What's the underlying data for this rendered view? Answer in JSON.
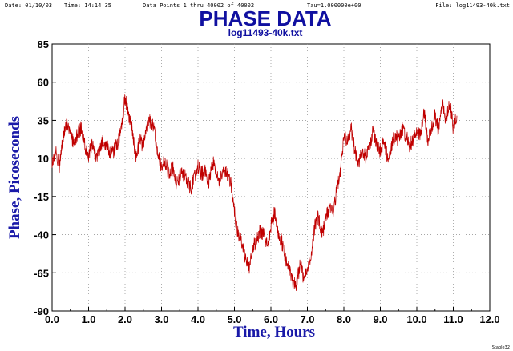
{
  "header": {
    "date": "Date: 01/10/03",
    "time": "Time: 14:14:35",
    "points": "Data Points 1 thru 40002 of 40002",
    "tau": "Tau=1.000000e+00",
    "file": "File: log11493-40k.txt"
  },
  "footer": {
    "program": "Stable32"
  },
  "colors": {
    "trace": "#c00000",
    "title": "#1010a0",
    "grid": "#9a9a9a"
  },
  "chart_data": {
    "type": "line",
    "title": "PHASE DATA",
    "subtitle": "log11493-40k.txt",
    "xlabel": "Time, Hours",
    "ylabel": "Phase, Picoseconds",
    "xlim": [
      0,
      12
    ],
    "ylim": [
      -90,
      85
    ],
    "xticks": [
      "0.0",
      "1.0",
      "2.0",
      "3.0",
      "4.0",
      "5.0",
      "6.0",
      "7.0",
      "8.0",
      "9.0",
      "10.0",
      "11.0",
      "12.0"
    ],
    "yticks": [
      "85",
      "60",
      "35",
      "10",
      "-15",
      "-40",
      "-65",
      "-90"
    ],
    "grid": true,
    "series": [
      {
        "x": [
          0.0,
          0.1,
          0.2,
          0.3,
          0.4,
          0.5,
          0.6,
          0.7,
          0.8,
          0.9,
          1.0,
          1.1,
          1.2,
          1.3,
          1.4,
          1.5,
          1.6,
          1.7,
          1.8,
          1.9,
          2.0,
          2.1,
          2.2,
          2.3,
          2.4,
          2.5,
          2.6,
          2.7,
          2.8,
          2.9,
          3.0,
          3.1,
          3.2,
          3.3,
          3.4,
          3.5,
          3.6,
          3.7,
          3.8,
          3.9,
          4.0,
          4.1,
          4.2,
          4.3,
          4.4,
          4.5,
          4.6,
          4.7,
          4.8,
          4.9,
          5.0,
          5.1,
          5.2,
          5.3,
          5.4,
          5.5,
          5.6,
          5.7,
          5.8,
          5.9,
          6.0,
          6.1,
          6.2,
          6.3,
          6.4,
          6.5,
          6.6,
          6.7,
          6.8,
          6.9,
          7.0,
          7.1,
          7.2,
          7.3,
          7.4,
          7.5,
          7.6,
          7.7,
          7.8,
          7.9,
          8.0,
          8.1,
          8.2,
          8.3,
          8.4,
          8.5,
          8.6,
          8.7,
          8.8,
          8.9,
          9.0,
          9.1,
          9.2,
          9.3,
          9.4,
          9.5,
          9.6,
          9.7,
          9.8,
          9.9,
          10.0,
          10.1,
          10.2,
          10.3,
          10.4,
          10.5,
          10.6,
          10.7,
          10.8,
          10.9,
          11.0,
          11.1
        ],
        "values": [
          8,
          15,
          5,
          22,
          35,
          25,
          20,
          27,
          30,
          18,
          12,
          20,
          10,
          15,
          22,
          18,
          12,
          15,
          20,
          30,
          50,
          38,
          28,
          10,
          22,
          18,
          30,
          35,
          28,
          12,
          5,
          8,
          0,
          5,
          -8,
          -2,
          0,
          -5,
          -10,
          -2,
          5,
          0,
          2,
          -5,
          8,
          2,
          -5,
          5,
          0,
          -5,
          -25,
          -40,
          -45,
          -55,
          -62,
          -48,
          -45,
          -38,
          -40,
          -45,
          -35,
          -25,
          -38,
          -45,
          -55,
          -62,
          -70,
          -72,
          -60,
          -68,
          -60,
          -55,
          -35,
          -28,
          -40,
          -30,
          -22,
          -25,
          -12,
          0,
          25,
          20,
          30,
          15,
          5,
          15,
          10,
          18,
          28,
          20,
          15,
          22,
          10,
          18,
          25,
          22,
          30,
          25,
          18,
          22,
          28,
          25,
          40,
          22,
          30,
          38,
          28,
          45,
          35,
          48,
          30,
          38
        ]
      }
    ]
  }
}
